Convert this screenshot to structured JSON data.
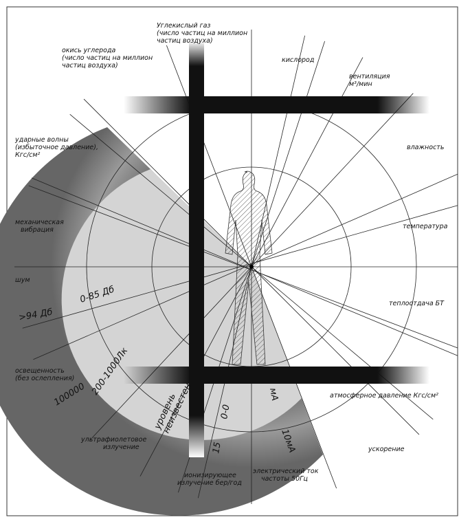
{
  "labels": [
    {
      "lines": [
        "Углекислый газ",
        "(число частиц на миллион",
        "частиц воздуха)"
      ]
    },
    {
      "lines": [
        "окись углерода",
        "(число частиц на миллион",
        "частиц воздуха)"
      ]
    },
    {
      "lines": [
        "кислород"
      ]
    },
    {
      "lines": [
        "вентиляция",
        "м³/мин"
      ]
    },
    {
      "lines": [
        "влажность"
      ]
    },
    {
      "lines": [
        "ударные волны",
        "(избыточное давление),",
        "Кгс/см²"
      ]
    },
    {
      "lines": [
        "механическая",
        "вибрация"
      ]
    },
    {
      "lines": [
        "температура"
      ]
    },
    {
      "lines": [
        "шум"
      ]
    },
    {
      "lines": [
        ">94 Дб"
      ]
    },
    {
      "lines": [
        "0-85 Дб"
      ]
    },
    {
      "lines": [
        "теплоотдача БТ"
      ]
    },
    {
      "lines": [
        "освещенность",
        "(без ослепления)"
      ]
    },
    {
      "lines": [
        "100000"
      ]
    },
    {
      "lines": [
        "200-1000Лк"
      ]
    },
    {
      "lines": [
        "уровень",
        "неизвестен"
      ]
    },
    {
      "lines": [
        "0-0"
      ]
    },
    {
      "lines": [
        "мА"
      ]
    },
    {
      "lines": [
        "атмосферное давление Кгс/см²"
      ]
    },
    {
      "lines": [
        "ультрафиолетовое",
        "излучение"
      ]
    },
    {
      "lines": [
        "15"
      ]
    },
    {
      "lines": [
        "10мА"
      ]
    },
    {
      "lines": [
        "ускорение"
      ]
    },
    {
      "lines": [
        "ионизирующее",
        "излучение бер/год"
      ]
    },
    {
      "lines": [
        "электрический ток",
        "частоты 50Гц"
      ]
    }
  ]
}
